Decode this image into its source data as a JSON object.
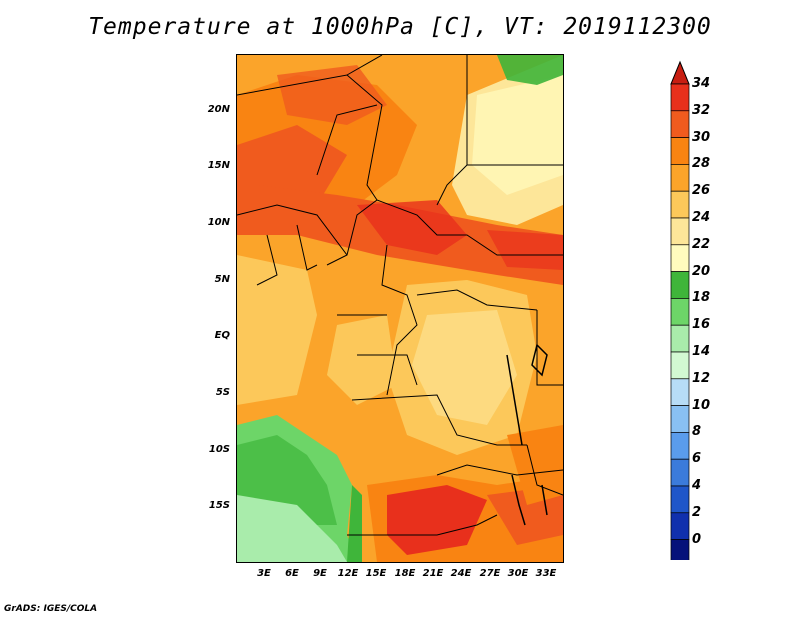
{
  "title": "Temperature at 1000hPa [C], VT: 2019112300",
  "credit": "GrADS: IGES/COLA",
  "lat_labels": [
    "20N",
    "15N",
    "10N",
    "5N",
    "EQ",
    "5S",
    "10S",
    "15S"
  ],
  "lon_labels": [
    "3E",
    "6E",
    "9E",
    "12E",
    "15E",
    "18E",
    "21E",
    "24E",
    "27E",
    "30E",
    "33E"
  ],
  "colorbar": {
    "labels": [
      "34",
      "32",
      "30",
      "28",
      "26",
      "24",
      "22",
      "20",
      "18",
      "16",
      "14",
      "12",
      "10",
      "8",
      "6",
      "4",
      "2",
      "0"
    ],
    "colors": [
      "#e8301c",
      "#f05b1e",
      "#f98412",
      "#fba42a",
      "#fcc85a",
      "#fde699",
      "#fffbbe",
      "#3fb53a",
      "#6dd568",
      "#a9ecab",
      "#d2f9d2",
      "#b7dcf6",
      "#89c0f2",
      "#5a9cec",
      "#3b7bdb",
      "#1f56c9",
      "#1030ad",
      "#06127a"
    ],
    "top_arrow_color": "#c81e12",
    "bottom_arrow_color": "#d6d6f0"
  }
}
